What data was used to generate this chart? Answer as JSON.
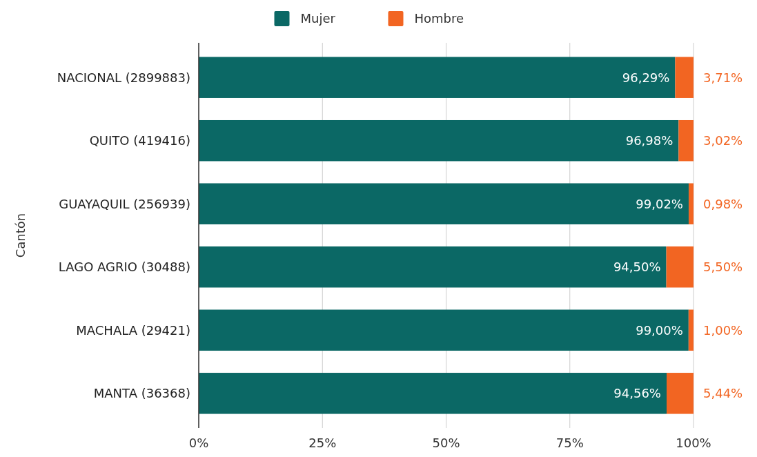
{
  "chart_data": {
    "type": "bar",
    "orientation": "horizontal",
    "stacked": true,
    "ylabel": "Cantón",
    "categories": [
      "NACIONAL (2899883)",
      "QUITO (419416)",
      "GUAYAQUIL (256939)",
      "LAGO AGRIO (30488)",
      "MACHALA (29421)",
      "MANTA (36368)"
    ],
    "series": [
      {
        "name": "Mujer",
        "color": "#0b6865",
        "values": [
          96.29,
          96.98,
          99.02,
          94.5,
          99.0,
          94.56
        ],
        "value_labels": [
          "96,29%",
          "96,98%",
          "99,02%",
          "94,50%",
          "99,00%",
          "94,56%"
        ]
      },
      {
        "name": "Hombre",
        "color": "#f26522",
        "values": [
          3.71,
          3.02,
          0.98,
          5.5,
          1.0,
          5.44
        ],
        "value_labels": [
          "3,71%",
          "3,02%",
          "0,98%",
          "5,50%",
          "1,00%",
          "5,44%"
        ]
      }
    ],
    "xlim": [
      0,
      100
    ],
    "xticks": [
      {
        "value": 0,
        "label": "0%"
      },
      {
        "value": 25,
        "label": "25%"
      },
      {
        "value": 50,
        "label": "50%"
      },
      {
        "value": 75,
        "label": "75%"
      },
      {
        "value": 100,
        "label": "100%"
      }
    ],
    "grid": "x",
    "legend": "top"
  }
}
